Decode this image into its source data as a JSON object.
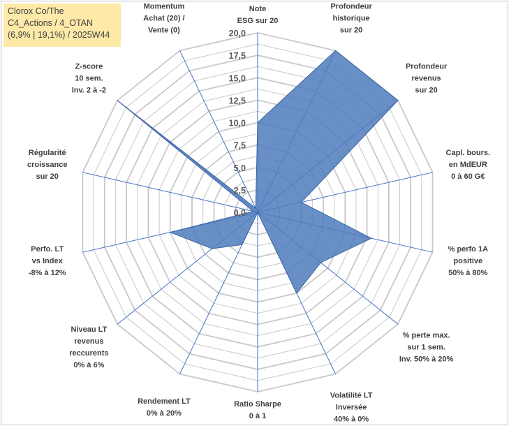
{
  "title_box": {
    "line1": "Clorox Co/The",
    "line2": "C4_Actions / 4_OTAN",
    "line3": "(6,9% | 19,1%) / 2025W44"
  },
  "chart_data": {
    "type": "radar",
    "title": "",
    "axes": [
      {
        "label": [
          "Note",
          "ESG sur 20"
        ]
      },
      {
        "label": [
          "Profondeur",
          "historique",
          "sur 20"
        ]
      },
      {
        "label": [
          "Profondeur",
          "revenus",
          "sur 20"
        ]
      },
      {
        "label": [
          "Capl. bours.",
          "en MdEUR",
          "0 à 60 G€"
        ]
      },
      {
        "label": [
          "% perfo 1A",
          "positive",
          "50% à 80%"
        ]
      },
      {
        "label": [
          "% perte max.",
          "sur 1 sem.",
          "Inv. 50% à 20%"
        ]
      },
      {
        "label": [
          "Volatilité LT",
          "Inversée",
          "40% à 0%"
        ]
      },
      {
        "label": [
          "Ratio Sharpe",
          "0 à 1"
        ]
      },
      {
        "label": [
          "Rendement LT",
          "0% à 20%"
        ]
      },
      {
        "label": [
          "Niveau LT",
          "revenus",
          "reccurents",
          "0% à 6%"
        ]
      },
      {
        "label": [
          "Perfo. LT",
          "vs Index",
          "-8% à 12%"
        ]
      },
      {
        "label": [
          "Régularité",
          "croissance",
          "sur 20"
        ]
      },
      {
        "label": [
          "Z-score",
          "10 sem.",
          "Inv. 2 à -2"
        ]
      },
      {
        "label": [
          "Momentum",
          "Achat (20) /",
          "Vente (0)"
        ]
      }
    ],
    "series": [
      {
        "values": [
          10,
          20,
          20,
          5,
          13,
          9,
          10,
          0,
          4,
          6.5,
          10,
          0.5,
          20,
          0.5
        ]
      }
    ],
    "rlim": [
      0,
      20
    ],
    "ticks": [
      "0,0",
      "2,5",
      "5,0",
      "7,5",
      "10,0",
      "12,5",
      "15,0",
      "17,5",
      "20,0"
    ],
    "tick_values": [
      0,
      2.5,
      5,
      7.5,
      10,
      12.5,
      15,
      17.5,
      20
    ],
    "grid": true,
    "colors": {
      "fill": "#4f7bbd",
      "stroke": "#3c64a5",
      "grid": "#c8c8c8",
      "spoke": "#4472c4",
      "title_box": "#fde9a8"
    }
  }
}
